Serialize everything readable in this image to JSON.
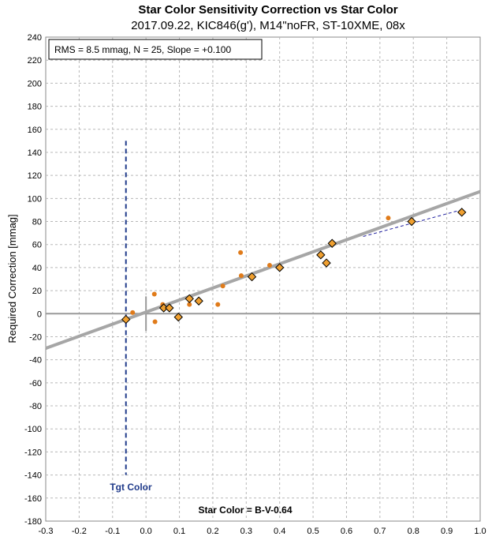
{
  "chart_data": {
    "type": "scatter",
    "title": "Star Color Sensitivity Correction vs Star Color",
    "subtitle": "2017.09.22, KIC846(g'), M14\"noFR, ST-10XME, 08x",
    "xlabel": "Star Color = B-V-0.64",
    "ylabel": "Required Correction [mmag]",
    "xlim": [
      -0.3,
      1.0
    ],
    "ylim": [
      -180,
      240
    ],
    "xticks": [
      "-0.3",
      "-0.2",
      "-0.1",
      "0.0",
      "0.1",
      "0.2",
      "0.3",
      "0.4",
      "0.5",
      "0.6",
      "0.7",
      "0.8",
      "0.9",
      "1.0"
    ],
    "yticks": [
      "-180",
      "-160",
      "-140",
      "-120",
      "-100",
      "-80",
      "-60",
      "-40",
      "-20",
      "0",
      "20",
      "40",
      "60",
      "80",
      "100",
      "120",
      "140",
      "160",
      "180",
      "200",
      "220",
      "240"
    ],
    "grid": true,
    "stats_box": "RMS = 8.5 mmag, N = 25, Slope = +0.100",
    "target_label": "Tgt Color",
    "target_color_x": -0.06,
    "fit_line": {
      "x": [
        -0.3,
        1.0
      ],
      "y": [
        -30,
        106
      ],
      "color": "#a6a6a6"
    },
    "dashed_fit": {
      "x": [
        0.65,
        0.93
      ],
      "y": [
        67,
        89
      ],
      "color": "#1f1f9f"
    },
    "series": [
      {
        "marker": "circle",
        "color": "#e07b1a",
        "points": [
          [
            -0.04,
            1
          ],
          [
            0.025,
            17
          ],
          [
            0.027,
            -7
          ],
          [
            0.05,
            8
          ],
          [
            0.07,
            4
          ],
          [
            0.13,
            8
          ],
          [
            0.215,
            8
          ],
          [
            0.23,
            24
          ],
          [
            0.283,
            53
          ],
          [
            0.285,
            33
          ],
          [
            0.37,
            42
          ],
          [
            0.725,
            83
          ]
        ]
      },
      {
        "marker": "diamond",
        "color": "#f0a030",
        "points": [
          [
            -0.06,
            -5
          ],
          [
            0.053,
            5
          ],
          [
            0.07,
            5
          ],
          [
            0.097,
            -3
          ],
          [
            0.13,
            13
          ],
          [
            0.158,
            11
          ],
          [
            0.317,
            32
          ],
          [
            0.4,
            40
          ],
          [
            0.523,
            51
          ],
          [
            0.54,
            44
          ],
          [
            0.557,
            61
          ],
          [
            0.795,
            80
          ],
          [
            0.945,
            88
          ]
        ]
      }
    ]
  }
}
